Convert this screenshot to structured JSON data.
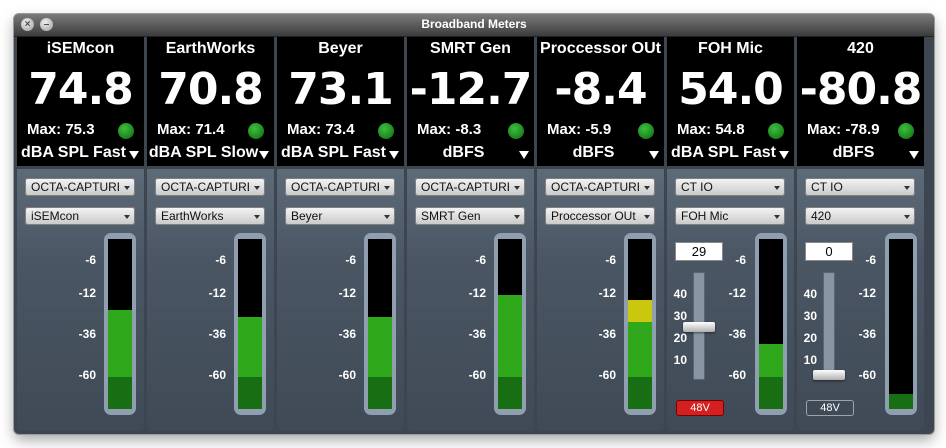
{
  "window": {
    "title": "Broadband Meters",
    "close_glyph": "×",
    "minimize_glyph": "–"
  },
  "scale_labels": [
    "-6",
    "-12",
    "-36",
    "-60"
  ],
  "fader_scale_labels": [
    "40",
    "30",
    "20",
    "10"
  ],
  "colors": {
    "meter_green": "#2fa81b",
    "meter_dark_green": "#186e13",
    "meter_yellow": "#c9c80c",
    "led_green": "#2a9a2a",
    "phantom_on": "#d42020",
    "phantom_off": "#3f4a56"
  },
  "channels": [
    {
      "name": "iSEMcon",
      "value": "74.8",
      "max": "Max: 75.3",
      "unit": "dBA SPL Fast",
      "device": "OCTA-CAPTURE",
      "input": "iSEMcon",
      "level": 0.58,
      "yellow": 0
    },
    {
      "name": "EarthWorks",
      "value": "70.8",
      "max": "Max: 71.4",
      "unit": "dBA SPL Slow",
      "device": "OCTA-CAPTURE",
      "input": "EarthWorks",
      "level": 0.54,
      "yellow": 0
    },
    {
      "name": "Beyer",
      "value": "73.1",
      "max": "Max: 73.4",
      "unit": "dBA SPL Fast",
      "device": "OCTA-CAPTURE",
      "input": "Beyer",
      "level": 0.54,
      "yellow": 0
    },
    {
      "name": "SMRT Gen",
      "value": "-12.7",
      "max": "Max: -8.3",
      "unit": "dBFS",
      "device": "OCTA-CAPTURE",
      "input": "SMRT Gen",
      "level": 0.67,
      "yellow": 0
    },
    {
      "name": "Proccessor OUt",
      "value": "-8.4",
      "max": "Max: -5.9",
      "unit": "dBFS",
      "device": "OCTA-CAPTURE",
      "input": "Proccessor OUt",
      "level": 0.64,
      "yellow": 0.13
    },
    {
      "name": "FOH Mic",
      "value": "54.0",
      "max": "Max: 54.8",
      "unit": "dBA SPL Fast",
      "device": "CT IO",
      "input": "FOH Mic",
      "level": 0.38,
      "yellow": 0,
      "fader": {
        "value": "29",
        "position": 0.29,
        "phantom": "48V",
        "phantom_on": true
      }
    },
    {
      "name": "420",
      "value": "-80.8",
      "max": "Max: -78.9",
      "unit": "dBFS",
      "device": "CT IO",
      "input": "420",
      "level": 0.09,
      "yellow": 0,
      "fader": {
        "value": "0",
        "position": 0,
        "phantom": "48V",
        "phantom_on": false
      }
    }
  ]
}
